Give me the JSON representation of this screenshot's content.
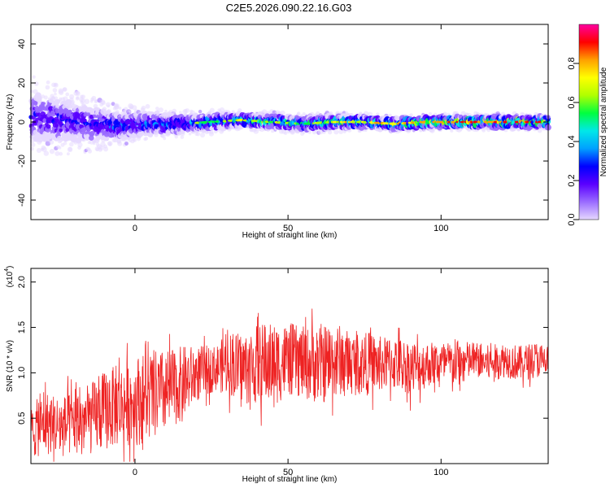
{
  "title": "C2E5.2026.090.22.16.G03",
  "colors": {
    "snr_line": "#ee2222",
    "axis": "#000000"
  },
  "chart_data": [
    {
      "type": "heatmap",
      "xlabel": "Height of straight line (km)",
      "ylabel": "Frequency (Hz)",
      "xlim": [
        -34,
        135
      ],
      "ylim": [
        -50,
        50
      ],
      "xticks": [
        0,
        50,
        100
      ],
      "yticks": [
        -40,
        -20,
        0,
        20,
        40
      ],
      "xtick_labels": [
        "0",
        "50",
        "100"
      ],
      "ytick_labels": [
        "-40",
        "-20",
        "0",
        "20",
        "40"
      ],
      "colorbar": {
        "label": "Normalized spectral amplitude",
        "range": [
          0.0,
          1.0
        ],
        "ticks": [
          0.0,
          0.2,
          0.4,
          0.6,
          0.8
        ],
        "tick_labels": [
          "0.0",
          "0.2",
          "0.4",
          "0.6",
          "0.8"
        ],
        "colormap": [
          "#e6d8ff",
          "#9a6bff",
          "#5a00ff",
          "#0000ff",
          "#00a0ff",
          "#00e8e8",
          "#00ff40",
          "#b0ff00",
          "#ffff00",
          "#ffa000",
          "#ff0000",
          "#ff00a0"
        ]
      },
      "ridge": {
        "x": [
          -34,
          -25,
          -15,
          -5,
          5,
          15,
          25,
          35,
          45,
          55,
          65,
          75,
          85,
          95,
          105,
          115,
          125,
          135
        ],
        "center_hz": [
          3,
          1,
          -1,
          -2,
          -1,
          -1,
          0,
          1,
          0,
          -1,
          0,
          0,
          -1,
          0,
          0,
          0,
          0,
          0
        ],
        "halfwidth_hz": [
          12,
          10,
          8,
          6,
          5,
          4,
          3.5,
          3,
          3,
          3,
          3,
          2.5,
          2.5,
          2.5,
          2.5,
          2.5,
          2.5,
          2.5
        ],
        "peak_amplitude": [
          0.3,
          0.3,
          0.35,
          0.4,
          0.4,
          0.45,
          0.55,
          0.6,
          0.6,
          0.6,
          0.65,
          0.7,
          0.75,
          0.8,
          0.85,
          0.85,
          0.9,
          0.9
        ]
      }
    },
    {
      "type": "line",
      "xlabel": "Height of straight line (km)",
      "ylabel": "SNR (10 * v/v)",
      "y_multiplier": "(x10",
      "y_multiplier_exp": "4",
      "y_multiplier_close": ")",
      "xlim": [
        -34,
        135
      ],
      "ylim": [
        0,
        2.15
      ],
      "xticks": [
        0,
        50,
        100
      ],
      "yticks": [
        0.5,
        1.0,
        1.5,
        2.0
      ],
      "xtick_labels": [
        "0",
        "50",
        "100"
      ],
      "ytick_labels": [
        "0.5",
        "1.0",
        "1.5",
        "2.0"
      ],
      "series": [
        {
          "x": [
            -34,
            -29,
            -24,
            -19,
            -14,
            -9,
            -4,
            1,
            6,
            11,
            16,
            21,
            26,
            31,
            36,
            41,
            46,
            51,
            56,
            61,
            66,
            71,
            76,
            81,
            86,
            91,
            96,
            101,
            106,
            111,
            116,
            121,
            126,
            131,
            135
          ],
          "values": [
            0.35,
            0.45,
            0.4,
            0.45,
            0.5,
            0.6,
            0.65,
            0.7,
            0.75,
            0.8,
            0.9,
            1.0,
            1.05,
            1.1,
            1.05,
            1.1,
            1.1,
            1.15,
            1.1,
            1.1,
            1.15,
            1.1,
            1.1,
            1.1,
            1.1,
            1.05,
            1.1,
            1.1,
            1.1,
            1.15,
            1.1,
            1.15,
            1.1,
            1.15,
            1.1
          ],
          "noise_amplitude": [
            0.3,
            0.35,
            0.35,
            0.35,
            0.4,
            0.45,
            0.45,
            0.5,
            0.5,
            0.45,
            0.4,
            0.3,
            0.25,
            0.35,
            0.4,
            0.45,
            0.45,
            0.4,
            0.4,
            0.45,
            0.4,
            0.35,
            0.35,
            0.3,
            0.3,
            0.3,
            0.25,
            0.25,
            0.25,
            0.2,
            0.2,
            0.2,
            0.2,
            0.2,
            0.2
          ]
        }
      ]
    }
  ]
}
